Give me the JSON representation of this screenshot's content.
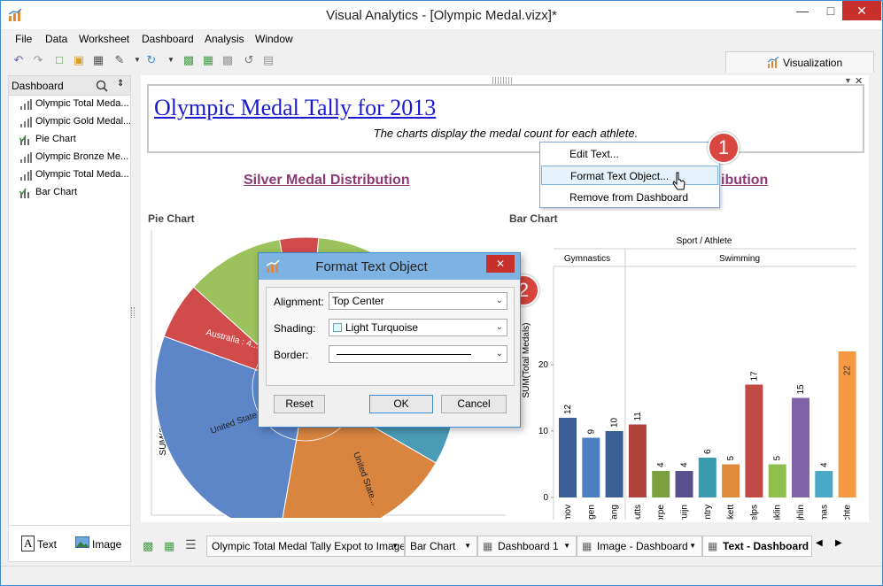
{
  "window": {
    "title": "Visual Analytics - [Olympic Medal.vizx]*"
  },
  "menu": [
    "File",
    "Data",
    "Worksheet",
    "Dashboard",
    "Analysis",
    "Window"
  ],
  "visualization_tab": "Visualization",
  "sidebar": {
    "header": "Dashboard",
    "items": [
      {
        "label": "Olympic Total Meda...",
        "icon": "bar-chart-icon"
      },
      {
        "label": "Olympic Gold Medal...",
        "icon": "bar-chart-icon"
      },
      {
        "label": "Pie Chart",
        "icon": "chart-check-icon"
      },
      {
        "label": "Olympic Bronze Me...",
        "icon": "bar-chart-icon"
      },
      {
        "label": "Olympic Total Meda...",
        "icon": "bar-chart-icon"
      },
      {
        "label": "Bar Chart",
        "icon": "chart-check-icon"
      }
    ],
    "text_button": "Text",
    "image_button": "Image"
  },
  "dashboard": {
    "title": "Olympic Medal Tally for 2013",
    "subtitle": "The charts display the medal count for each athlete.",
    "left_section_title": "Silver Medal Distribution",
    "right_section_title_partial": "ibution",
    "pie_label": "Pie Chart",
    "bar_label": "Bar Chart"
  },
  "context_menu": [
    "Edit Text...",
    "Format Text Object...",
    "Remove from Dashboard"
  ],
  "badges": [
    "1",
    "2"
  ],
  "dialog": {
    "title": "Format Text Object",
    "alignment_label": "Alignment:",
    "alignment_value": "Top Center",
    "shading_label": "Shading:",
    "shading_value": "Light Turquoise",
    "border_label": "Border:",
    "reset": "Reset",
    "ok": "OK",
    "cancel": "Cancel"
  },
  "tabs": [
    "Olympic Total Medal Tally Expot to Image",
    "Bar Chart",
    "Dashboard 1",
    "Image - Dashboard",
    "Text - Dashboard"
  ],
  "chart_data": [
    {
      "type": "pie",
      "ylabel": "SUM(Silver Medals)",
      "visible_labels": [
        "Australia : 4...",
        "United State...",
        "United State..."
      ],
      "colors": [
        "#d14b4b",
        "#9bc25c",
        "#5d86c8",
        "#d9843f",
        "#4a9bb5"
      ]
    },
    {
      "type": "bar",
      "title": "Sport / Athlete",
      "groups": [
        {
          "name": "Gymnastics",
          "categories": [
            "Aleksey Nemov",
            "Marit Bjorgen",
            "Sun Yang"
          ]
        },
        {
          "name": "Swimming",
          "categories": [
            "Alicia Coutts",
            "Ian Thorpe",
            "Inge de Bruijn",
            "Kirsty Coventry",
            "Libby Lenton-Trickett",
            "Michael Phelps",
            "Missy Franklin",
            "Natalie Coughlin",
            "Petria Thomas",
            "Ryan Lochte"
          ]
        }
      ],
      "categories": [
        "Aleksey Nemov",
        "Marit Bjorgen",
        "Sun Yang",
        "Alicia Coutts",
        "Ian Thorpe",
        "Inge de Bruijn",
        "Kirsty Coventry",
        "Libby Lenton-Trickett",
        "Michael Phelps",
        "Missy Franklin",
        "Natalie Coughlin",
        "Petria Thomas",
        "Ryan Lochte"
      ],
      "values": [
        12,
        9,
        10,
        11,
        4,
        4,
        6,
        5,
        17,
        5,
        15,
        4,
        22
      ],
      "colors": [
        "#3b5f96",
        "#4e7fc0",
        "#3b5f96",
        "#b0413d",
        "#7aa13e",
        "#5a4f8e",
        "#3a9ab0",
        "#e08a3c",
        "#c24a46",
        "#8fbf4f",
        "#7e63a8",
        "#4aa9c7",
        "#f59a43"
      ],
      "ylabel": "SUM(Total Medals)",
      "yticks": [
        0,
        10,
        20
      ],
      "ylim": [
        0,
        22
      ]
    }
  ]
}
